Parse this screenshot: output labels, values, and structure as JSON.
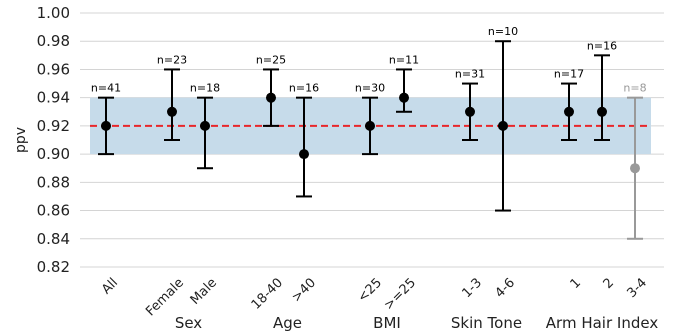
{
  "chart_data": {
    "type": "errorbar",
    "ylabel": "ppv",
    "ylim": [
      0.82,
      1.0
    ],
    "yticks": [
      "0.82",
      "0.84",
      "0.86",
      "0.88",
      "0.90",
      "0.92",
      "0.94",
      "0.96",
      "0.98",
      "1.00"
    ],
    "grid": "horizontal",
    "reference_line": {
      "value": 0.92,
      "style": "dashed",
      "color": "#e8262a"
    },
    "reference_band": {
      "low": 0.9,
      "high": 0.94,
      "color": "#c6dbea"
    },
    "normal_color": "#000000",
    "muted_color": "#999999",
    "points": [
      {
        "label": "All",
        "group": "",
        "value": 0.92,
        "low": 0.9,
        "high": 0.94,
        "n": "n=41",
        "muted": false
      },
      {
        "label": "Female",
        "group": "Sex",
        "value": 0.93,
        "low": 0.91,
        "high": 0.96,
        "n": "n=23",
        "muted": false
      },
      {
        "label": "Male",
        "group": "Sex",
        "value": 0.92,
        "low": 0.89,
        "high": 0.94,
        "n": "n=18",
        "muted": false
      },
      {
        "label": "18-40",
        "group": "Age",
        "value": 0.94,
        "low": 0.92,
        "high": 0.96,
        "n": "n=25",
        "muted": false
      },
      {
        "label": ">40",
        "group": "Age",
        "value": 0.9,
        "low": 0.87,
        "high": 0.94,
        "n": "n=16",
        "muted": false
      },
      {
        "label": "<25",
        "group": "BMI",
        "value": 0.92,
        "low": 0.9,
        "high": 0.94,
        "n": "n=30",
        "muted": false
      },
      {
        "label": ">=25",
        "group": "BMI",
        "value": 0.94,
        "low": 0.93,
        "high": 0.96,
        "n": "n=11",
        "muted": false
      },
      {
        "label": "1-3",
        "group": "Skin Tone",
        "value": 0.93,
        "low": 0.91,
        "high": 0.95,
        "n": "n=31",
        "muted": false
      },
      {
        "label": "4-6",
        "group": "Skin Tone",
        "value": 0.92,
        "low": 0.86,
        "high": 0.98,
        "n": "n=10",
        "muted": false
      },
      {
        "label": "1",
        "group": "Arm Hair Index",
        "value": 0.93,
        "low": 0.91,
        "high": 0.95,
        "n": "n=17",
        "muted": false
      },
      {
        "label": "2",
        "group": "Arm Hair Index",
        "value": 0.93,
        "low": 0.91,
        "high": 0.97,
        "n": "n=16",
        "muted": false
      },
      {
        "label": "3-4",
        "group": "Arm Hair Index",
        "value": 0.89,
        "low": 0.84,
        "high": 0.94,
        "n": "n=8",
        "muted": true
      }
    ],
    "groups": [
      "Sex",
      "Age",
      "BMI",
      "Skin Tone",
      "Arm Hair Index"
    ]
  }
}
